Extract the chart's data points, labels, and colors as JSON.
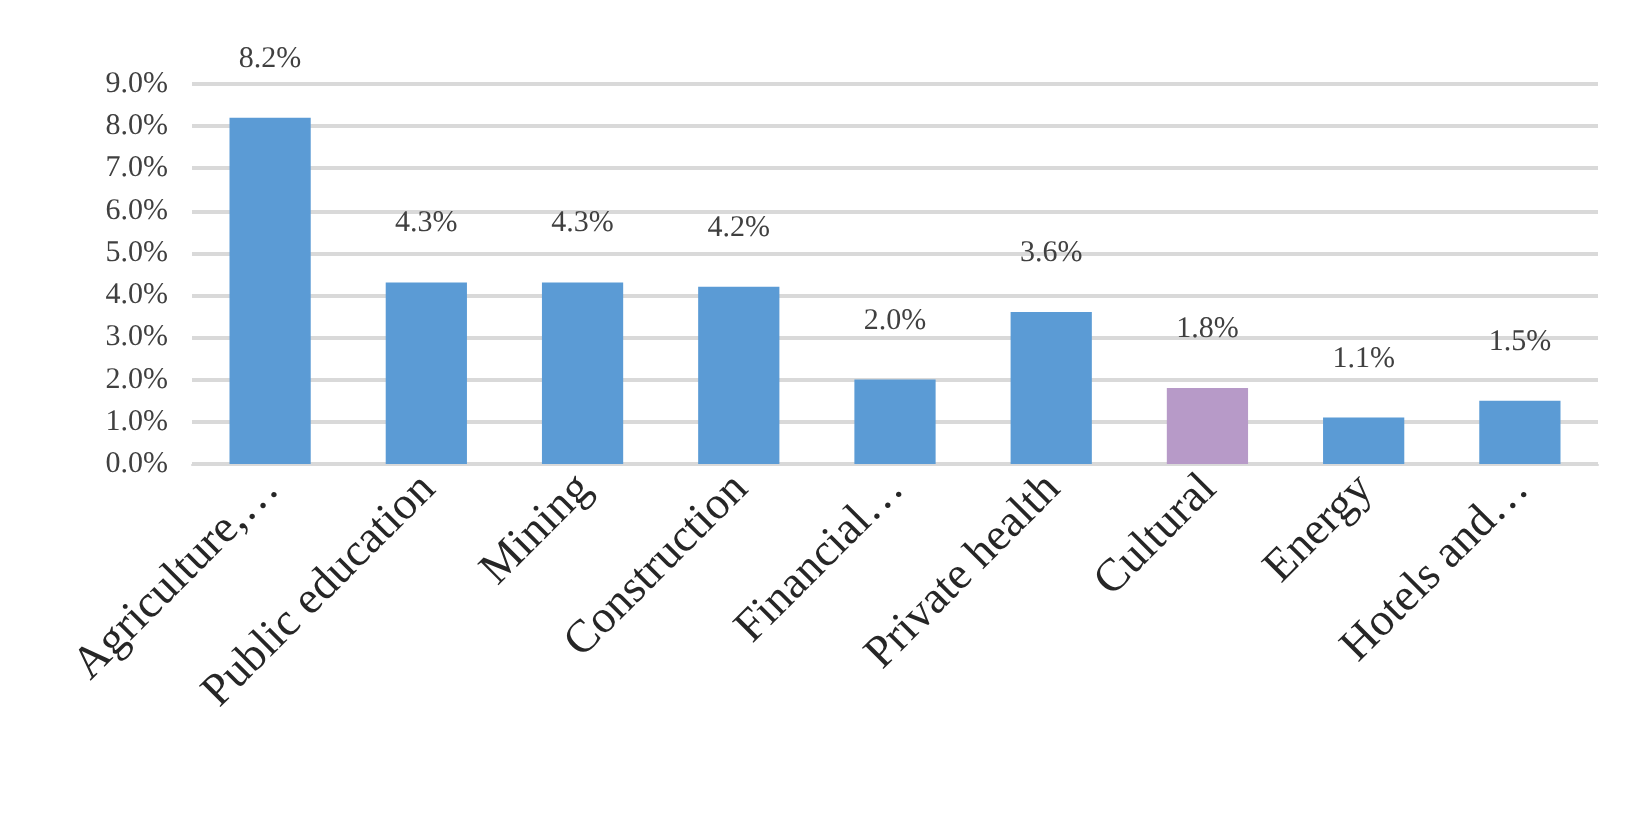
{
  "chart_data": {
    "type": "bar",
    "categories": [
      "Agriculture,…",
      "Public education",
      "Mining",
      "Construction",
      "Financial…",
      "Private health",
      "Cultural",
      "Energy",
      "Hotels and…"
    ],
    "values": [
      8.2,
      4.3,
      4.3,
      4.2,
      2.0,
      3.6,
      1.8,
      1.1,
      1.5
    ],
    "colors": [
      "#5b9bd5",
      "#5b9bd5",
      "#5b9bd5",
      "#5b9bd5",
      "#5b9bd5",
      "#5b9bd5",
      "#b79ac8",
      "#5b9bd5",
      "#5b9bd5"
    ],
    "value_labels": [
      "8.2%",
      "4.3%",
      "4.3%",
      "4.2%",
      "2.0%",
      "3.6%",
      "1.8%",
      "1.1%",
      "1.5%"
    ],
    "ylim": [
      0,
      9
    ],
    "yticks": [
      {
        "value": 0,
        "label": "0.0%"
      },
      {
        "value": 1,
        "label": "1.0%"
      },
      {
        "value": 2,
        "label": "2.0%"
      },
      {
        "value": 3,
        "label": "3.0%"
      },
      {
        "value": 4,
        "label": "4.0%"
      },
      {
        "value": 5,
        "label": "5.0%"
      },
      {
        "value": 6,
        "label": "6.0%"
      },
      {
        "value": 7,
        "label": "7.0%"
      },
      {
        "value": 8,
        "label": "8.0%"
      },
      {
        "value": 9,
        "label": "9.0%"
      }
    ],
    "grid": "y"
  }
}
